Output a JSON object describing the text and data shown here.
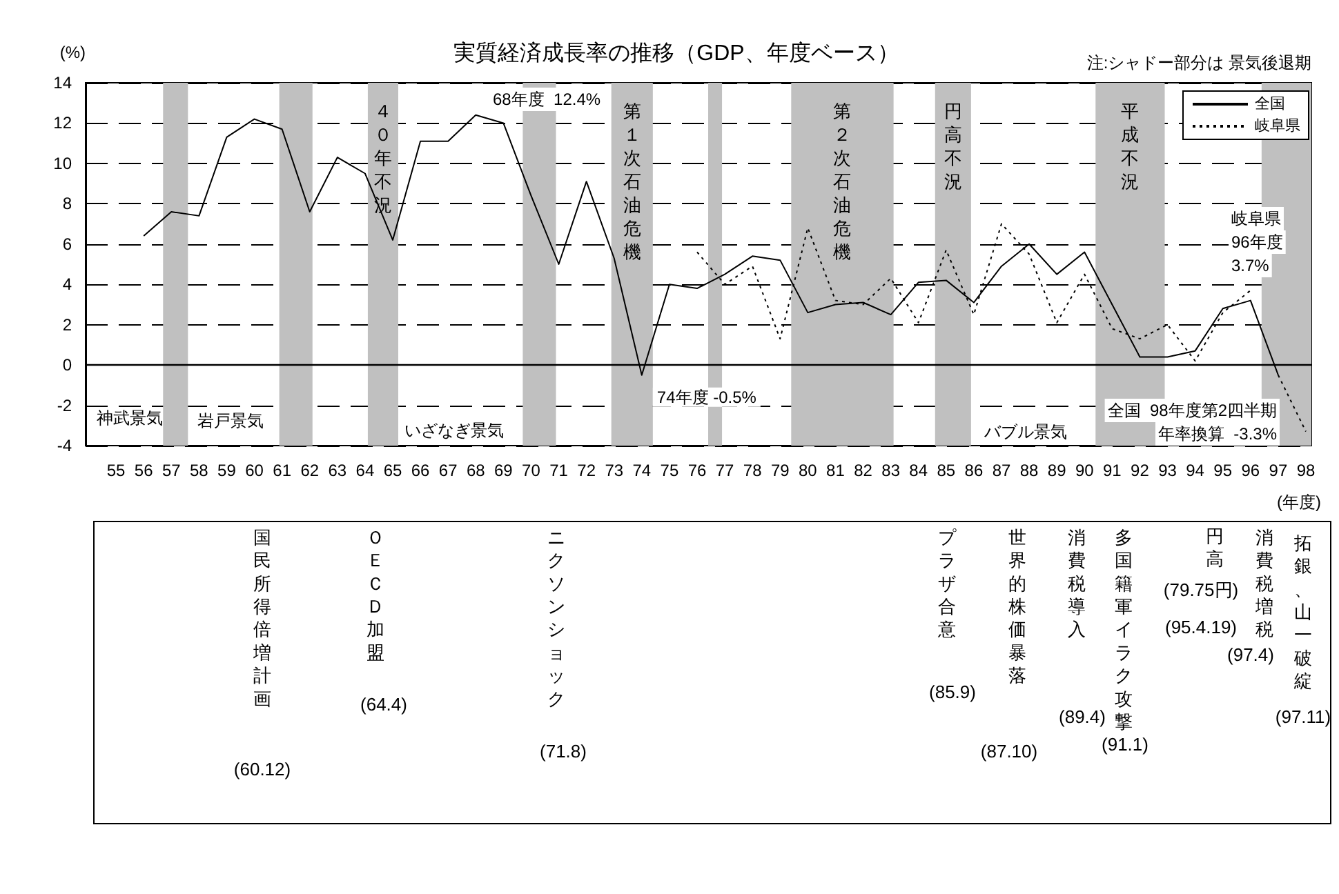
{
  "chart_data": {
    "type": "line",
    "title": "実質経済成長率の推移（GDP、年度ベース）",
    "ylabel": "(%)",
    "xlabel": "(年度)",
    "series": [
      {
        "name": "全国",
        "color": "#000000",
        "line_style": "solid",
        "x": [
          56,
          57,
          58,
          59,
          60,
          61,
          62,
          63,
          64,
          65,
          66,
          67,
          68,
          69,
          70,
          71,
          72,
          73,
          74,
          75,
          76,
          77,
          78,
          79,
          80,
          81,
          82,
          83,
          84,
          85,
          86,
          87,
          88,
          89,
          90,
          91,
          92,
          93,
          94,
          95,
          96,
          97
        ],
        "values": [
          6.4,
          7.6,
          7.4,
          11.3,
          12.2,
          11.7,
          7.6,
          10.3,
          9.5,
          6.2,
          11.1,
          11.1,
          12.4,
          12.0,
          8.4,
          5.0,
          9.1,
          5.3,
          -0.5,
          4.0,
          3.8,
          4.5,
          5.4,
          5.2,
          2.6,
          3.0,
          3.1,
          2.5,
          4.1,
          4.2,
          3.1,
          4.9,
          6.0,
          4.5,
          5.6,
          3.0,
          0.4,
          0.4,
          0.7,
          2.8,
          3.2,
          -0.5
        ]
      },
      {
        "name": "岐阜県",
        "color": "#000000",
        "line_style": "dotted",
        "x": [
          76,
          77,
          78,
          79,
          80,
          81,
          82,
          83,
          84,
          85,
          86,
          87,
          88,
          89,
          90,
          91,
          92,
          93,
          94,
          95,
          96
        ],
        "values": [
          5.6,
          4.0,
          4.9,
          1.3,
          6.8,
          3.2,
          3.0,
          4.3,
          2.1,
          5.7,
          2.5,
          7.0,
          5.5,
          2.1,
          4.5,
          1.8,
          1.3,
          2.0,
          0.2,
          2.6,
          3.7
        ]
      },
      {
        "color": "#000000",
        "line_style": "dotted",
        "x": [
          97,
          98
        ],
        "values": [
          -0.5,
          -3.3
        ]
      }
    ],
    "xlim": [
      53.9,
      98.2
    ],
    "xticks": [
      55,
      56,
      57,
      58,
      59,
      60,
      61,
      62,
      63,
      64,
      65,
      66,
      67,
      68,
      69,
      70,
      71,
      72,
      73,
      74,
      75,
      76,
      77,
      78,
      79,
      80,
      81,
      82,
      83,
      84,
      85,
      86,
      87,
      88,
      89,
      90,
      91,
      92,
      93,
      94,
      95,
      96,
      97,
      98
    ],
    "ylim": [
      -4,
      14
    ],
    "yticks": [
      -4,
      -2,
      0,
      2,
      4,
      6,
      8,
      10,
      12,
      14
    ],
    "grid": "y",
    "legend": "top right",
    "marker": "none",
    "ref_lines": [
      {
        "axis": "y",
        "value": 0,
        "color": "#000000"
      }
    ],
    "bands": [
      {
        "axis": "x",
        "from": 56.7,
        "to": 57.6,
        "color": "#c0c0c0"
      },
      {
        "axis": "x",
        "from": 60.9,
        "to": 62.1,
        "color": "#c0c0c0"
      },
      {
        "axis": "x",
        "from": 64.1,
        "to": 65.2,
        "color": "#c0c0c0",
        "label": "４０年不況"
      },
      {
        "axis": "x",
        "from": 69.7,
        "to": 70.9,
        "color": "#c0c0c0"
      },
      {
        "axis": "x",
        "from": 72.9,
        "to": 74.4,
        "color": "#c0c0c0",
        "label": "第１次石油危機"
      },
      {
        "axis": "x",
        "from": 76.4,
        "to": 76.9,
        "color": "#c0c0c0"
      },
      {
        "axis": "x",
        "from": 79.4,
        "to": 83.1,
        "color": "#c0c0c0",
        "label": "第２次石油危機"
      },
      {
        "axis": "x",
        "from": 84.6,
        "to": 85.9,
        "color": "#c0c0c0",
        "label": "円高不況"
      },
      {
        "axis": "x",
        "from": 90.4,
        "to": 92.9,
        "color": "#c0c0c0",
        "label": "平成不況"
      },
      {
        "axis": "x",
        "from": 96.4,
        "to": 98.2,
        "color": "#c0c0c0"
      }
    ],
    "annotations": [
      "注:シャドー部分は 景気後退期",
      "68年度  12.4%",
      {
        "text": "74年度 -0.5%",
        "x": 74.4,
        "y": -1.6
      },
      "岐阜県",
      "96年度",
      "3.7%",
      "全国  98年度第2四半期",
      "年率換算  -3.3%",
      "神武景気",
      "岩戸景気",
      "いざなぎ景気",
      "バブル景気",
      "国民所得倍増計画",
      "(60.12)",
      "ＯＥＣＤ加盟",
      "(64.4)",
      "ニクソンショック",
      "(71.8)",
      "プラザ合意",
      "(85.9)",
      "世界的株価暴落",
      "(87.10)",
      "消費税導入",
      "(89.4)",
      "多国籍軍イラク攻撃",
      "(91.1)",
      "円高",
      "(79.75円)",
      "(95.4.19)",
      "消費税増税",
      "(97.4)",
      "拓銀、山一破綻",
      "(97.11)"
    ]
  }
}
